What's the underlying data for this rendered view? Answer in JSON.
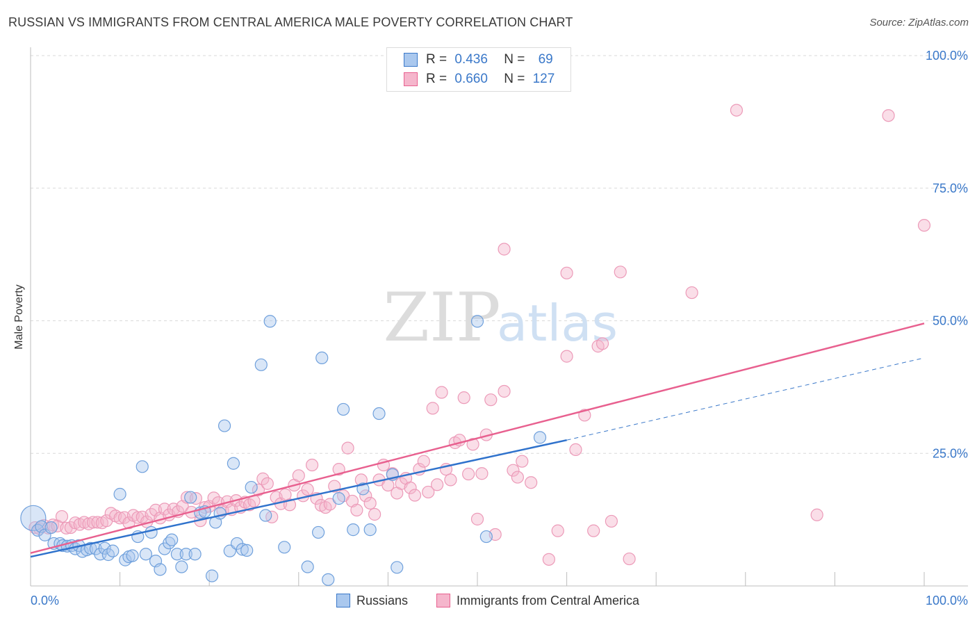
{
  "title": "RUSSIAN VS IMMIGRANTS FROM CENTRAL AMERICA MALE POVERTY CORRELATION CHART",
  "source": "Source: ZipAtlas.com",
  "watermark": {
    "zip": "ZIP",
    "atlas": "atlas"
  },
  "colors": {
    "blue": "#3a78c9",
    "blue_fill": "#aac8ee",
    "pink": "#e8608f",
    "pink_fill": "#f5b6cc",
    "axis_text": "#3a78c9",
    "grid": "#d9d9d9"
  },
  "legend_top": {
    "rows": [
      {
        "r_label": "R =",
        "r_value": "0.436",
        "n_label": "N =",
        "n_value": "69"
      },
      {
        "r_label": "R =",
        "r_value": "0.660",
        "n_label": "N =",
        "n_value": "127"
      }
    ]
  },
  "legend_bottom": {
    "items": [
      "Russians",
      "Immigrants from Central America"
    ]
  },
  "chart_data": {
    "type": "scatter",
    "title": "RUSSIAN VS IMMIGRANTS FROM CENTRAL AMERICA MALE POVERTY CORRELATION CHART",
    "xlabel": "",
    "ylabel": "Male Poverty",
    "xlim": [
      0,
      100
    ],
    "ylim": [
      0,
      100
    ],
    "x_tick_labels": [
      "0.0%",
      "100.0%"
    ],
    "y_tick_labels": [
      "25.0%",
      "50.0%",
      "75.0%",
      "100.0%"
    ],
    "y_ticks": [
      25,
      50,
      75,
      100
    ],
    "grid": true,
    "legend_position": "bottom",
    "series": [
      {
        "name": "Russians",
        "r": 0.436,
        "n": 69,
        "color": "#3a78c9",
        "trend": {
          "x0": 0,
          "y0": 5.5,
          "x1": 60,
          "y1": 27.5,
          "dash_x1": 100,
          "dash_y1": 43
        },
        "points": [
          [
            0.3,
            12.8
          ],
          [
            0.8,
            10.5
          ],
          [
            1.2,
            11.2
          ],
          [
            1.6,
            9.6
          ],
          [
            2.3,
            11.0
          ],
          [
            2.6,
            8.0
          ],
          [
            3.3,
            8.0
          ],
          [
            3.6,
            7.6
          ],
          [
            4.1,
            7.5
          ],
          [
            4.6,
            7.6
          ],
          [
            5.0,
            7.0
          ],
          [
            5.4,
            7.6
          ],
          [
            5.8,
            6.5
          ],
          [
            6.3,
            6.8
          ],
          [
            6.7,
            7.1
          ],
          [
            7.3,
            7.0
          ],
          [
            7.8,
            6.0
          ],
          [
            8.3,
            7.1
          ],
          [
            8.7,
            5.9
          ],
          [
            9.2,
            6.6
          ],
          [
            10.0,
            17.3
          ],
          [
            10.6,
            4.9
          ],
          [
            11.0,
            5.5
          ],
          [
            11.4,
            5.7
          ],
          [
            12.0,
            9.3
          ],
          [
            12.5,
            22.5
          ],
          [
            12.9,
            6.0
          ],
          [
            13.5,
            10.1
          ],
          [
            14.0,
            4.7
          ],
          [
            14.5,
            3.1
          ],
          [
            15.0,
            7.0
          ],
          [
            15.5,
            8.1
          ],
          [
            15.8,
            8.7
          ],
          [
            16.4,
            6.0
          ],
          [
            16.9,
            3.6
          ],
          [
            17.4,
            6.0
          ],
          [
            17.9,
            16.7
          ],
          [
            18.4,
            6.0
          ],
          [
            19.0,
            13.8
          ],
          [
            19.5,
            14.0
          ],
          [
            20.3,
            1.9
          ],
          [
            20.7,
            12.0
          ],
          [
            21.2,
            13.7
          ],
          [
            21.7,
            30.2
          ],
          [
            22.3,
            6.6
          ],
          [
            22.7,
            23.1
          ],
          [
            23.1,
            8.0
          ],
          [
            23.7,
            6.9
          ],
          [
            24.2,
            6.7
          ],
          [
            24.7,
            18.6
          ],
          [
            25.8,
            41.7
          ],
          [
            26.3,
            13.3
          ],
          [
            26.8,
            49.9
          ],
          [
            28.4,
            7.3
          ],
          [
            31.0,
            3.6
          ],
          [
            32.2,
            10.1
          ],
          [
            32.6,
            43.0
          ],
          [
            33.3,
            1.2
          ],
          [
            34.5,
            16.5
          ],
          [
            35.0,
            33.3
          ],
          [
            36.1,
            10.6
          ],
          [
            37.2,
            18.3
          ],
          [
            38.0,
            10.6
          ],
          [
            39.0,
            32.5
          ],
          [
            40.5,
            21.0
          ],
          [
            41.0,
            3.5
          ],
          [
            50.0,
            49.9
          ],
          [
            51.0,
            9.3
          ],
          [
            57.0,
            28.0
          ]
        ]
      },
      {
        "name": "Immigrants from Central America",
        "r": 0.66,
        "n": 127,
        "color": "#e8608f",
        "trend": {
          "x0": 0,
          "y0": 6.2,
          "x1": 100,
          "y1": 49.5
        },
        "points": [
          [
            0.5,
            11.0
          ],
          [
            1.0,
            10.8
          ],
          [
            1.5,
            11.4
          ],
          [
            2.0,
            10.9
          ],
          [
            2.5,
            11.5
          ],
          [
            3.0,
            11.3
          ],
          [
            3.5,
            13.1
          ],
          [
            4.0,
            10.9
          ],
          [
            4.5,
            11.0
          ],
          [
            5.0,
            11.9
          ],
          [
            5.5,
            11.6
          ],
          [
            6.0,
            12.0
          ],
          [
            6.5,
            11.7
          ],
          [
            7.0,
            12.0
          ],
          [
            7.5,
            12.0
          ],
          [
            8.0,
            11.9
          ],
          [
            8.5,
            12.3
          ],
          [
            9.0,
            13.7
          ],
          [
            9.5,
            13.2
          ],
          [
            10.0,
            12.8
          ],
          [
            10.5,
            12.9
          ],
          [
            11.0,
            11.9
          ],
          [
            11.5,
            13.3
          ],
          [
            12.0,
            12.9
          ],
          [
            12.5,
            13.0
          ],
          [
            13.0,
            12.1
          ],
          [
            13.5,
            13.5
          ],
          [
            14.0,
            14.3
          ],
          [
            14.5,
            12.8
          ],
          [
            15.0,
            14.5
          ],
          [
            15.5,
            13.4
          ],
          [
            16.0,
            14.5
          ],
          [
            16.5,
            14.0
          ],
          [
            17.0,
            15.0
          ],
          [
            17.5,
            16.7
          ],
          [
            18.0,
            13.9
          ],
          [
            18.5,
            16.5
          ],
          [
            19.0,
            12.3
          ],
          [
            19.5,
            14.8
          ],
          [
            20.0,
            15.0
          ],
          [
            20.5,
            16.6
          ],
          [
            21.0,
            15.7
          ],
          [
            21.5,
            14.2
          ],
          [
            22.0,
            15.9
          ],
          [
            22.5,
            14.4
          ],
          [
            23.0,
            16.1
          ],
          [
            23.5,
            14.8
          ],
          [
            24.0,
            15.8
          ],
          [
            24.5,
            15.3
          ],
          [
            25.0,
            16.0
          ],
          [
            25.5,
            18.1
          ],
          [
            26.0,
            20.2
          ],
          [
            26.5,
            19.3
          ],
          [
            27.0,
            13.0
          ],
          [
            27.5,
            16.7
          ],
          [
            28.0,
            15.5
          ],
          [
            28.5,
            17.2
          ],
          [
            29.0,
            15.3
          ],
          [
            29.5,
            19.0
          ],
          [
            30.0,
            20.8
          ],
          [
            30.5,
            17.0
          ],
          [
            31.0,
            18.2
          ],
          [
            31.5,
            22.8
          ],
          [
            32.0,
            16.5
          ],
          [
            32.5,
            15.2
          ],
          [
            33.0,
            14.8
          ],
          [
            33.5,
            15.4
          ],
          [
            34.0,
            18.8
          ],
          [
            34.5,
            22.0
          ],
          [
            35.0,
            17.0
          ],
          [
            35.5,
            26.0
          ],
          [
            36.0,
            16.0
          ],
          [
            36.5,
            14.3
          ],
          [
            37.0,
            20.0
          ],
          [
            37.5,
            17.0
          ],
          [
            38.0,
            15.6
          ],
          [
            38.5,
            13.5
          ],
          [
            39.0,
            20.0
          ],
          [
            39.5,
            22.8
          ],
          [
            40.0,
            19.0
          ],
          [
            40.5,
            21.2
          ],
          [
            41.0,
            17.5
          ],
          [
            41.5,
            19.3
          ],
          [
            42.0,
            20.3
          ],
          [
            42.5,
            18.5
          ],
          [
            43.0,
            17.1
          ],
          [
            43.5,
            22.0
          ],
          [
            44.0,
            23.5
          ],
          [
            44.5,
            17.7
          ],
          [
            45.0,
            33.5
          ],
          [
            45.5,
            19.1
          ],
          [
            46.0,
            36.5
          ],
          [
            46.5,
            22.0
          ],
          [
            47.0,
            20.0
          ],
          [
            47.5,
            27.0
          ],
          [
            48.0,
            27.5
          ],
          [
            48.5,
            35.5
          ],
          [
            49.0,
            21.1
          ],
          [
            49.5,
            26.7
          ],
          [
            50.0,
            12.6
          ],
          [
            50.5,
            21.2
          ],
          [
            51.0,
            28.5
          ],
          [
            51.5,
            35.1
          ],
          [
            52.0,
            9.7
          ],
          [
            53.0,
            63.5
          ],
          [
            54.0,
            21.8
          ],
          [
            54.5,
            20.5
          ],
          [
            55.0,
            23.5
          ],
          [
            56.0,
            19.5
          ],
          [
            58.0,
            5.0
          ],
          [
            59.0,
            10.4
          ],
          [
            60.0,
            59.0
          ],
          [
            61.0,
            25.7
          ],
          [
            62.0,
            32.2
          ],
          [
            63.0,
            10.4
          ],
          [
            63.5,
            45.2
          ],
          [
            64.0,
            45.7
          ],
          [
            65.0,
            12.2
          ],
          [
            66.0,
            59.2
          ],
          [
            67.0,
            5.1
          ],
          [
            74.0,
            55.3
          ],
          [
            79.0,
            89.7
          ],
          [
            88.0,
            13.4
          ],
          [
            96.0,
            88.7
          ],
          [
            100.0,
            68.0
          ],
          [
            60.0,
            43.3
          ],
          [
            53.0,
            36.7
          ]
        ]
      }
    ]
  }
}
